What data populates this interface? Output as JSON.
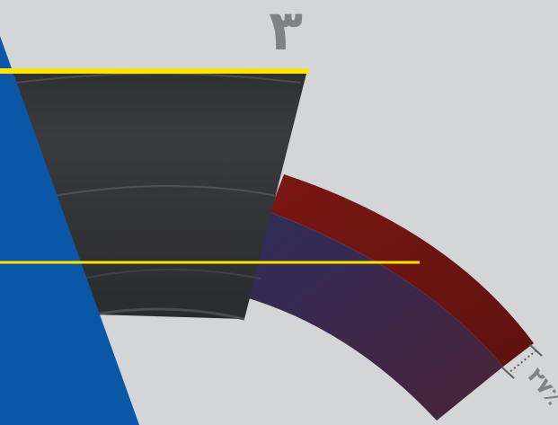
{
  "labels": {
    "top_number": "۳",
    "measure_percent": "۲۷٪"
  },
  "colors": {
    "background": "#d4d5d7",
    "blue_wedge": "#0a57a8",
    "dark_segment": "#2e2f31",
    "red_band": "#6b1512",
    "purple_band": "#3a2a4f",
    "yellow_line": "#ffe400",
    "label_gray": "#808287"
  },
  "icons": {
    "measure_marker": "dimension-bracket-icon"
  }
}
